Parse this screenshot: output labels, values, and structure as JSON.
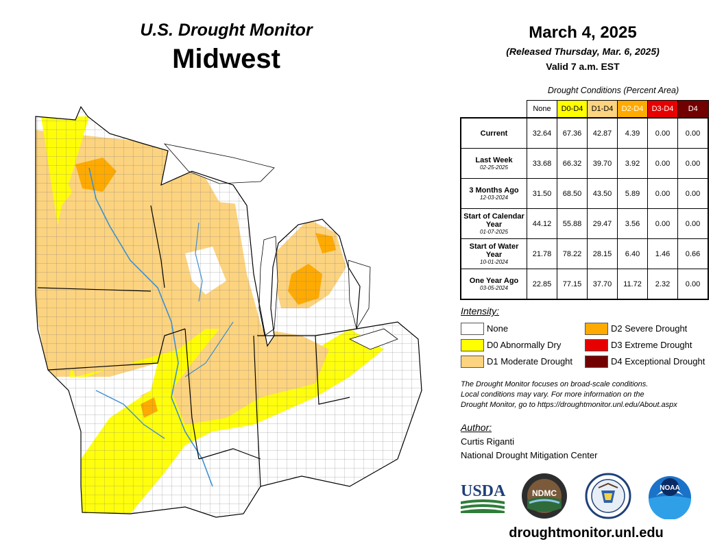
{
  "header": {
    "title_top": "U.S. Drought Monitor",
    "region": "Midwest",
    "date": "March 4, 2025",
    "released": "(Released Thursday, Mar. 6, 2025)",
    "valid": "Valid 7 a.m. EST"
  },
  "table": {
    "caption": "Drought Conditions (Percent Area)",
    "columns": [
      "None",
      "D0-D4",
      "D1-D4",
      "D2-D4",
      "D3-D4",
      "D4"
    ],
    "rows": [
      {
        "label": "Current",
        "date": "",
        "values": [
          "32.64",
          "67.36",
          "42.87",
          "4.39",
          "0.00",
          "0.00"
        ]
      },
      {
        "label": "Last Week",
        "date": "02-25-2025",
        "values": [
          "33.68",
          "66.32",
          "39.70",
          "3.92",
          "0.00",
          "0.00"
        ]
      },
      {
        "label": "3 Months Ago",
        "date": "12-03-2024",
        "values": [
          "31.50",
          "68.50",
          "43.50",
          "5.89",
          "0.00",
          "0.00"
        ]
      },
      {
        "label": "Start of Calendar Year",
        "date": "01-07-2025",
        "values": [
          "44.12",
          "55.88",
          "29.47",
          "3.56",
          "0.00",
          "0.00"
        ]
      },
      {
        "label": "Start of Water Year",
        "date": "10-01-2024",
        "values": [
          "21.78",
          "78.22",
          "28.15",
          "6.40",
          "1.46",
          "0.66"
        ]
      },
      {
        "label": "One Year Ago",
        "date": "03-05-2024",
        "values": [
          "22.85",
          "77.15",
          "37.70",
          "11.72",
          "2.32",
          "0.00"
        ]
      }
    ]
  },
  "legend": {
    "title": "Intensity:",
    "items": [
      {
        "label": "None",
        "color": "#ffffff"
      },
      {
        "label": "D0 Abnormally Dry",
        "color": "#ffff00"
      },
      {
        "label": "D1 Moderate Drought",
        "color": "#fcd37f"
      },
      {
        "label": "D2 Severe Drought",
        "color": "#ffaa00"
      },
      {
        "label": "D3 Extreme Drought",
        "color": "#e60000"
      },
      {
        "label": "D4 Exceptional Drought",
        "color": "#730000"
      }
    ]
  },
  "note": {
    "line1": "The Drought Monitor focuses on broad-scale conditions.",
    "line2": "Local conditions may vary. For more information on the",
    "line3": "Drought Monitor, go to https://droughtmonitor.unl.edu/About.aspx"
  },
  "author": {
    "title": "Author:",
    "name": "Curtis Riganti",
    "org": "National Drought Mitigation Center"
  },
  "logos": {
    "usda": "USDA",
    "ndmc": "NDMC",
    "noaa": "NOAA"
  },
  "footer": {
    "url": "droughtmonitor.unl.edu"
  }
}
